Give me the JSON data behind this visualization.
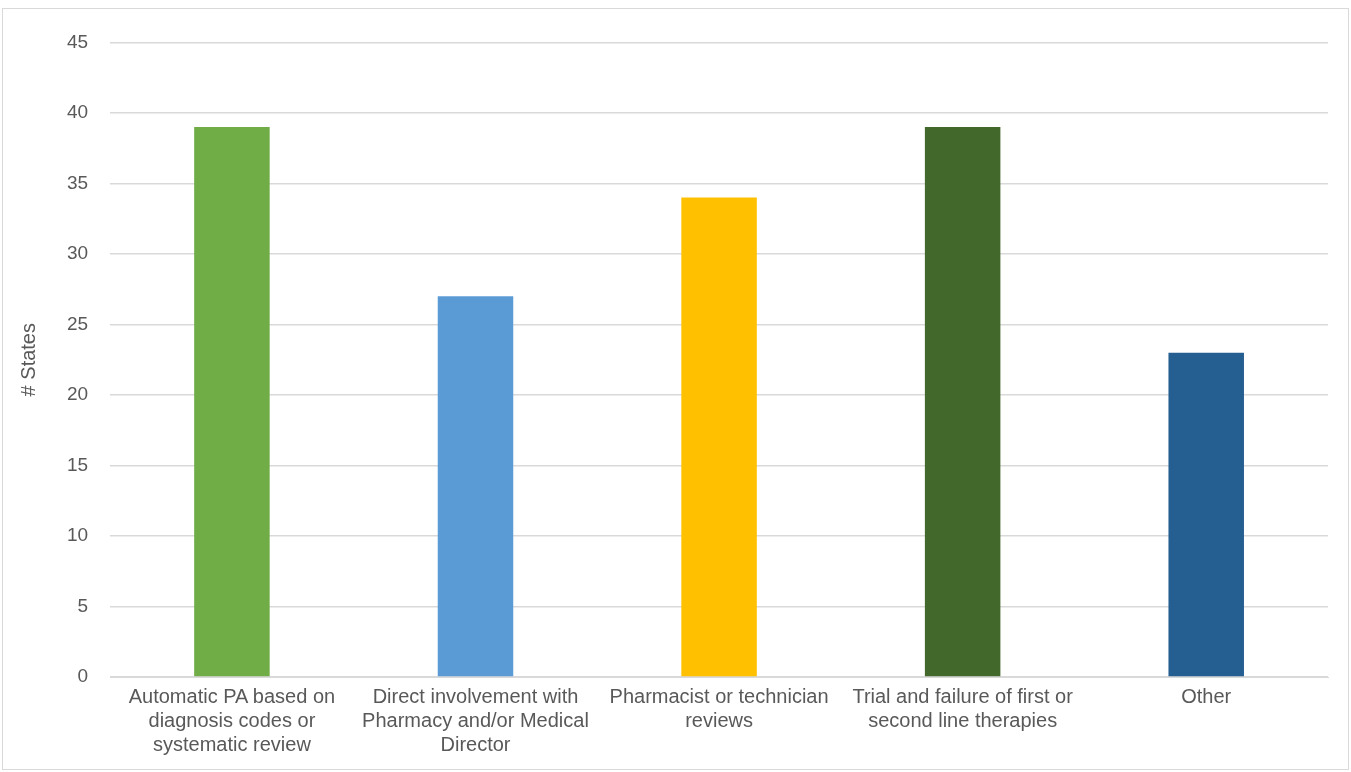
{
  "chart_data": {
    "type": "bar",
    "ylabel": "# States",
    "categories": [
      "Automatic PA based on diagnosis codes or systematic review",
      "Direct involvement with Pharmacy and/or Medical Director",
      "Pharmacist or technician reviews",
      "Trial and failure of first or second line therapies",
      "Other"
    ],
    "values": [
      39,
      27,
      34,
      39,
      23
    ],
    "colors": [
      "#70ad47",
      "#5b9bd5",
      "#ffc000",
      "#43682b",
      "#255e91"
    ],
    "ylim": [
      0,
      45
    ],
    "yticks": [
      0,
      5,
      10,
      15,
      20,
      25,
      30,
      35,
      40,
      45
    ],
    "grid": "y",
    "legend": false
  }
}
